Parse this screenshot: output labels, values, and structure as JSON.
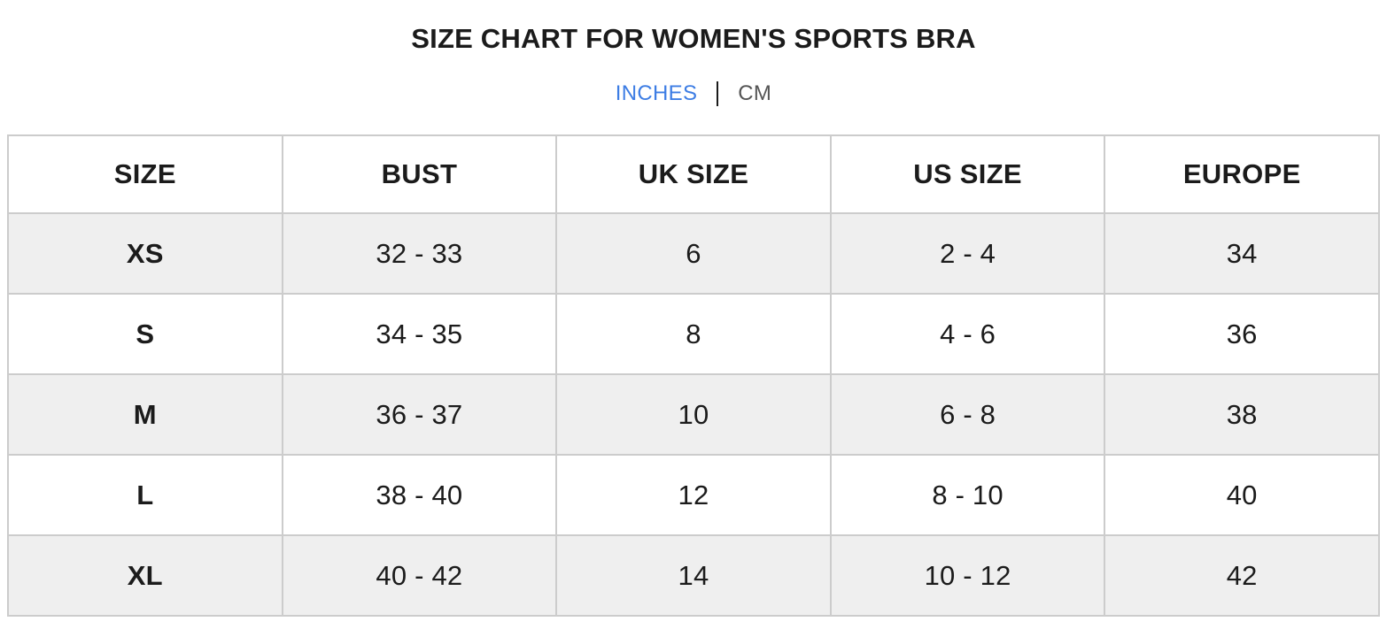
{
  "title": "SIZE CHART FOR WOMEN'S SPORTS BRA",
  "unit_toggle": {
    "options": [
      {
        "label": "INCHES",
        "active": true
      },
      {
        "label": "CM",
        "active": false
      }
    ],
    "separator": "|",
    "active_color": "#3d7de4",
    "inactive_color": "#555555"
  },
  "chart_data": {
    "type": "table",
    "title": "SIZE CHART FOR WOMEN'S SPORTS BRA",
    "unit": "INCHES",
    "columns": [
      "SIZE",
      "BUST",
      "UK SIZE",
      "US SIZE",
      "EUROPE"
    ],
    "rows": [
      [
        "XS",
        "32 - 33",
        "6",
        "2 - 4",
        "34"
      ],
      [
        "S",
        "34 - 35",
        "8",
        "4 - 6",
        "36"
      ],
      [
        "M",
        "36 - 37",
        "10",
        "6 - 8",
        "38"
      ],
      [
        "L",
        "38 - 40",
        "12",
        "8 - 10",
        "40"
      ],
      [
        "XL",
        "40 - 42",
        "14",
        "10 - 12",
        "42"
      ]
    ],
    "stripe_rows": [
      "XS",
      "M",
      "XL"
    ]
  },
  "colors": {
    "text": "#1b1b1b",
    "stripe_background": "#efefef",
    "table_border": "#cccccc",
    "accent_blue": "#3d7de4",
    "inactive_gray": "#555555"
  }
}
